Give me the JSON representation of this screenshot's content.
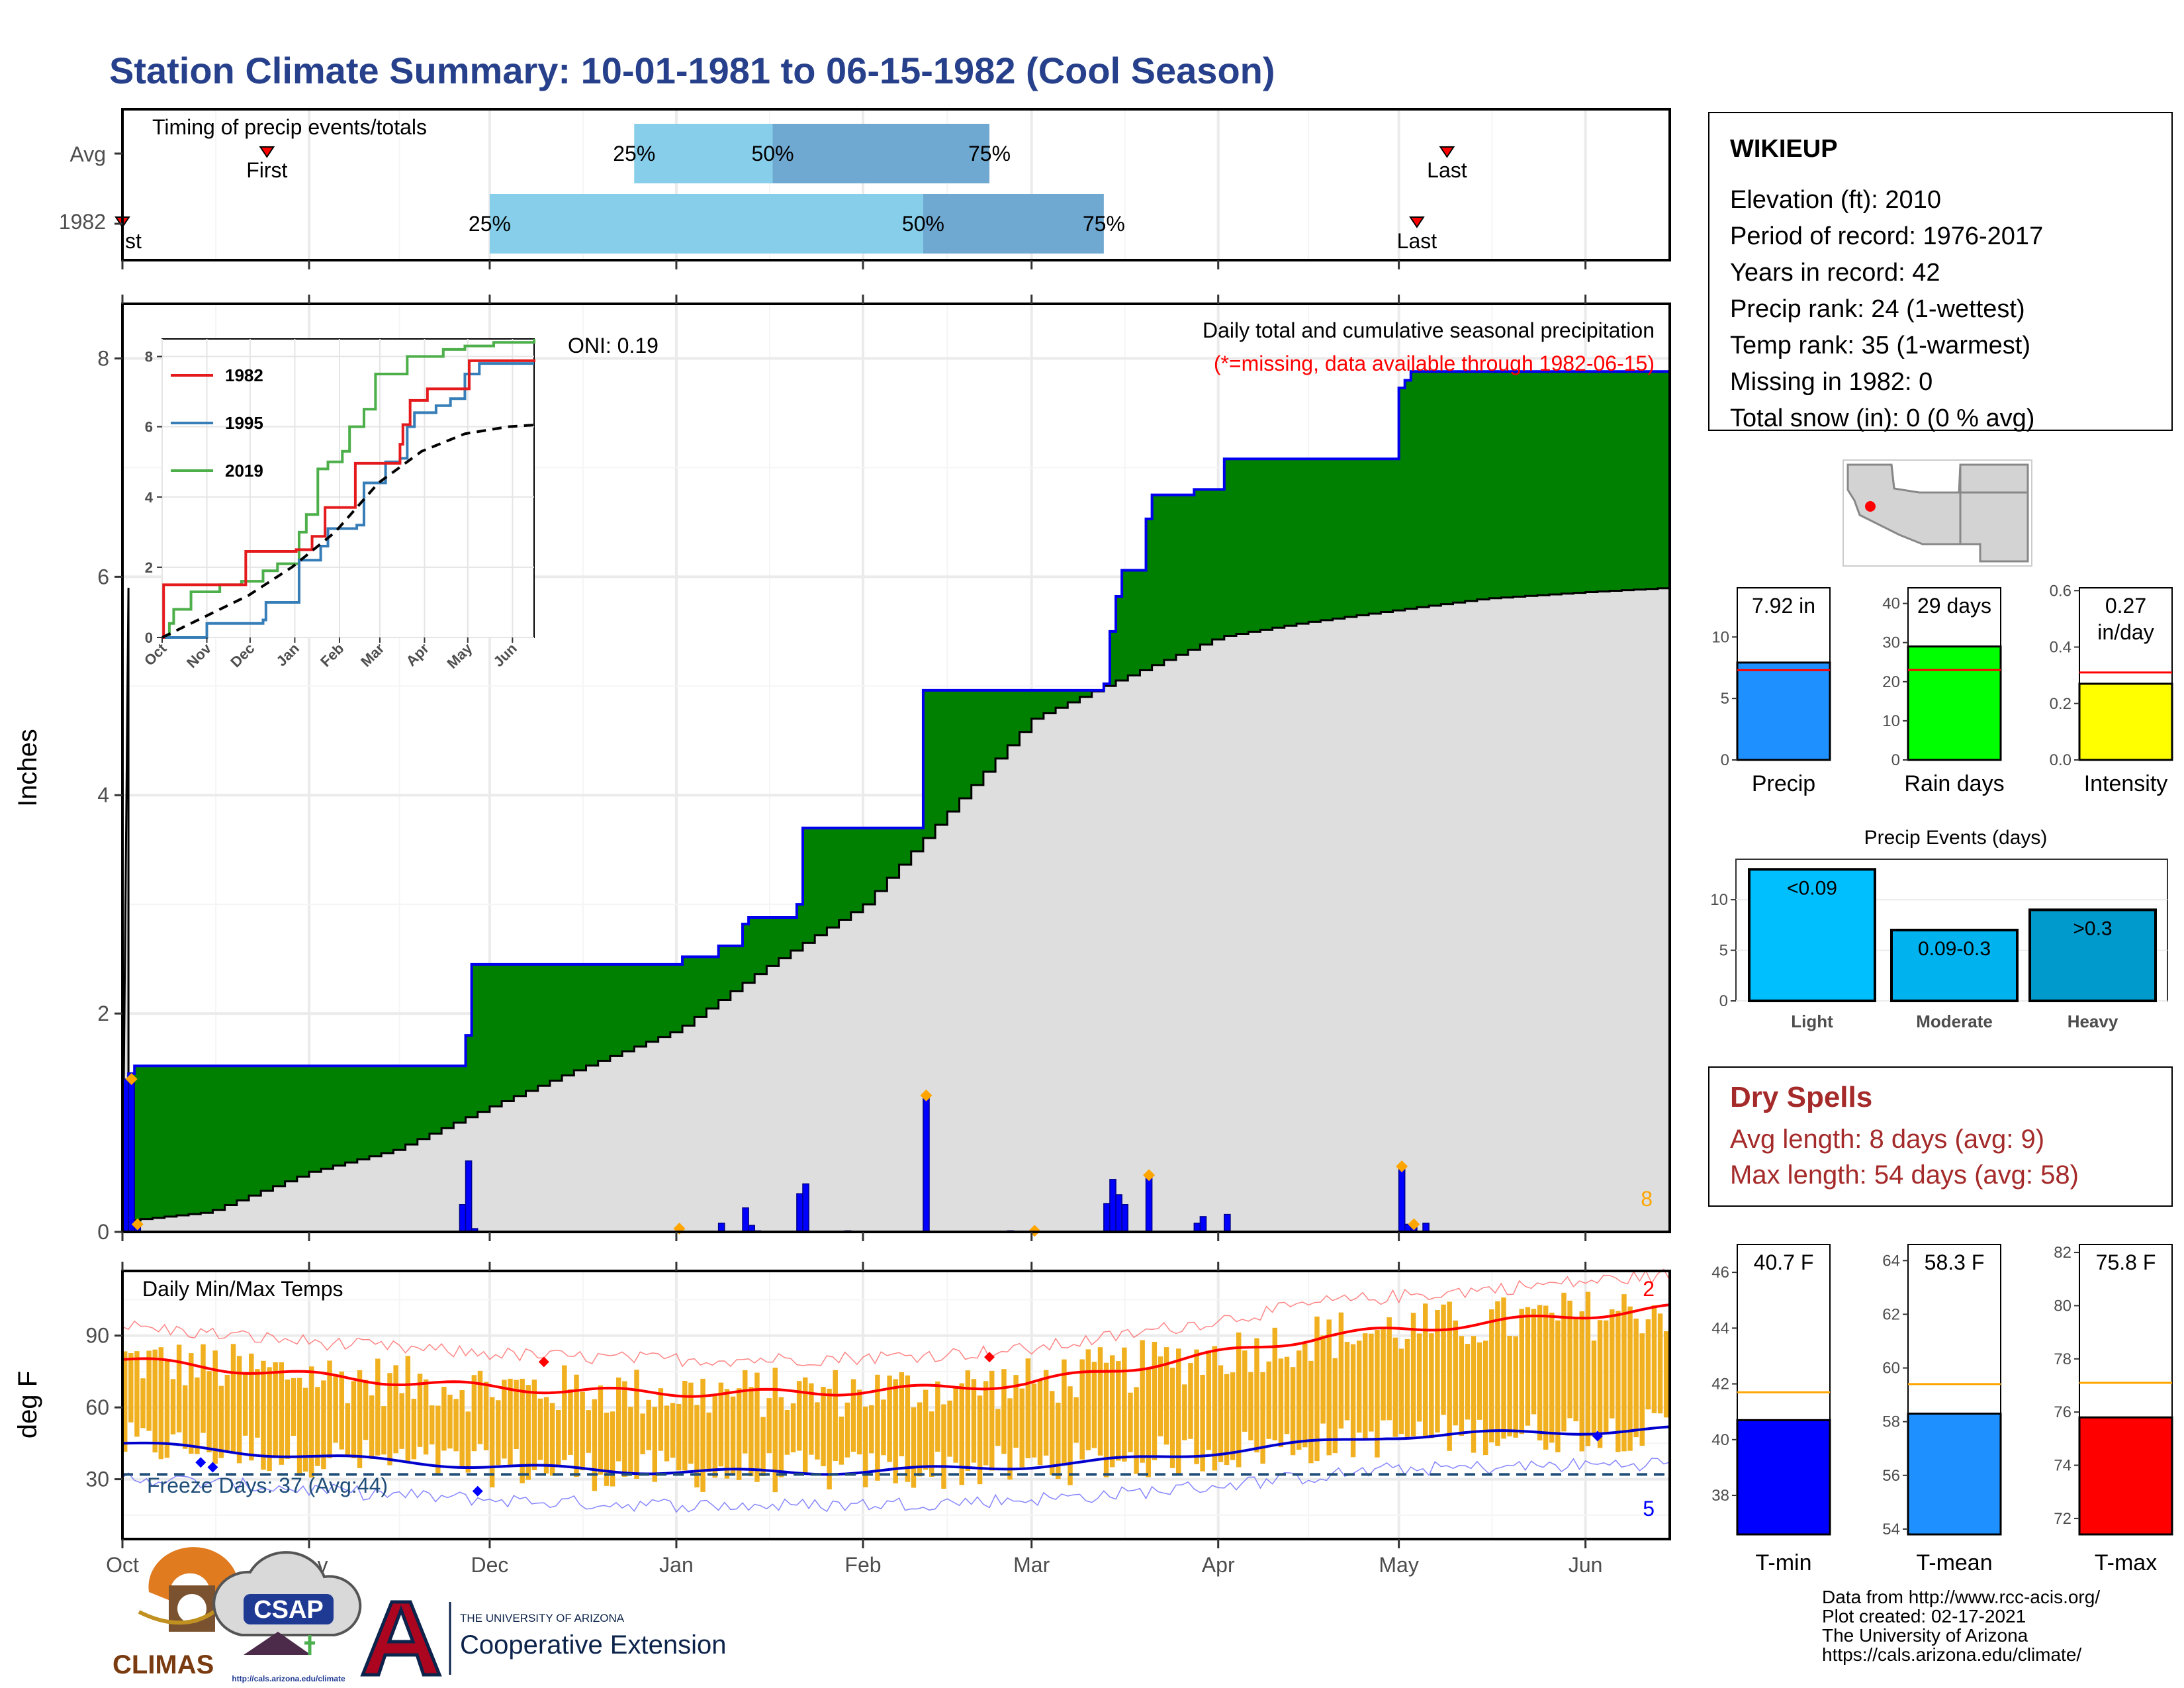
{
  "title": "Station Climate Summary: 10-01-1981 to 06-15-1982 (Cool Season)",
  "colors": {
    "title": "#27408b",
    "cumulative_fill": "#008000",
    "avg_fill": "#dedede",
    "precip_line": "#0000ee",
    "temp_bar": "#f0b020",
    "tmax_line": "#ff0000",
    "tmin_line": "#0000cd",
    "dry_spell_text": "#a52a2a"
  },
  "timing": {
    "label": "Timing of precip events/totals",
    "rows": [
      "Avg",
      "1982"
    ],
    "first_label": "First",
    "first_label_partial": "st",
    "last_label": "Last",
    "pct_labels": [
      "25%",
      "50%",
      "75%"
    ],
    "avg": {
      "first": "1981-10-25",
      "p25": "1981-12-25",
      "p50": "1982-01-17",
      "p75": "1982-02-22",
      "last": "1982-05-09"
    },
    "y1982": {
      "first": "1981-10-01",
      "p25": "1981-12-01",
      "p50": "1982-02-11",
      "p75": "1982-03-13",
      "last": "1982-05-04"
    }
  },
  "precip": {
    "ylabel": "Inches",
    "ylim": [
      0,
      8.5
    ],
    "yticks": [
      "0",
      "2",
      "4",
      "6",
      "8"
    ],
    "caption": "Daily total and cumulative seasonal precipitation",
    "missing_note": "(*=missing, data available through 1982-06-15)",
    "oni": "ONI: 0.19",
    "count_label": "8",
    "cumulative_1982": [
      [
        "1981-10-01",
        0
      ],
      [
        "1981-10-02",
        1.45
      ],
      [
        "1981-10-03",
        1.52
      ],
      [
        "1981-11-26",
        1.52
      ],
      [
        "1981-11-27",
        1.8
      ],
      [
        "1981-11-28",
        2.45
      ],
      [
        "1982-01-01",
        2.45
      ],
      [
        "1982-01-02",
        2.52
      ],
      [
        "1982-01-07",
        2.52
      ],
      [
        "1982-01-08",
        2.62
      ],
      [
        "1982-01-11",
        2.62
      ],
      [
        "1982-01-12",
        2.82
      ],
      [
        "1982-01-13",
        2.88
      ],
      [
        "1982-01-20",
        2.88
      ],
      [
        "1982-01-21",
        3.0
      ],
      [
        "1982-01-22",
        3.7
      ],
      [
        "1982-02-10",
        3.7
      ],
      [
        "1982-02-11",
        4.96
      ],
      [
        "1982-03-12",
        4.96
      ],
      [
        "1982-03-13",
        5.02
      ],
      [
        "1982-03-14",
        5.5
      ],
      [
        "1982-03-15",
        5.82
      ],
      [
        "1982-03-16",
        6.06
      ],
      [
        "1982-03-19",
        6.06
      ],
      [
        "1982-03-20",
        6.53
      ],
      [
        "1982-03-21",
        6.75
      ],
      [
        "1982-03-27",
        6.75
      ],
      [
        "1982-03-28",
        6.8
      ],
      [
        "1982-04-01",
        6.8
      ],
      [
        "1982-04-02",
        7.08
      ],
      [
        "1982-04-30",
        7.08
      ],
      [
        "1982-05-01",
        7.73
      ],
      [
        "1982-05-02",
        7.8
      ],
      [
        "1982-05-03",
        7.88
      ],
      [
        "1982-06-15",
        7.92
      ]
    ],
    "avg_curve": [
      [
        "1981-10-01",
        0.1
      ],
      [
        "1981-10-15",
        0.18
      ],
      [
        "1981-11-01",
        0.55
      ],
      [
        "1981-11-15",
        0.75
      ],
      [
        "1981-12-01",
        1.15
      ],
      [
        "1981-12-15",
        1.48
      ],
      [
        "1982-01-01",
        1.85
      ],
      [
        "1982-01-15",
        2.4
      ],
      [
        "1982-02-01",
        3.0
      ],
      [
        "1982-02-15",
        3.85
      ],
      [
        "1982-03-01",
        4.7
      ],
      [
        "1982-03-15",
        5.05
      ],
      [
        "1982-04-01",
        5.45
      ],
      [
        "1982-04-15",
        5.58
      ],
      [
        "1982-05-01",
        5.7
      ],
      [
        "1982-05-15",
        5.8
      ],
      [
        "1982-06-01",
        5.86
      ],
      [
        "1982-06-15",
        5.9
      ]
    ],
    "daily": [
      [
        "1981-10-01",
        1.4
      ],
      [
        "1981-10-02",
        1.4
      ],
      [
        "1981-10-03",
        0.07
      ],
      [
        "1981-11-26",
        0.25
      ],
      [
        "1981-11-27",
        0.65
      ],
      [
        "1981-11-28",
        0.03
      ],
      [
        "1982-01-01",
        0.04
      ],
      [
        "1982-01-08",
        0.08
      ],
      [
        "1982-01-12",
        0.22
      ],
      [
        "1982-01-13",
        0.06
      ],
      [
        "1982-01-14",
        0.01
      ],
      [
        "1982-01-21",
        0.35
      ],
      [
        "1982-01-22",
        0.44
      ],
      [
        "1982-01-29",
        0.01
      ],
      [
        "1982-02-11",
        1.25
      ],
      [
        "1982-02-25",
        0.01
      ],
      [
        "1982-03-13",
        0.26
      ],
      [
        "1982-03-14",
        0.48
      ],
      [
        "1982-03-15",
        0.34
      ],
      [
        "1982-03-16",
        0.25
      ],
      [
        "1982-03-20",
        0.5
      ],
      [
        "1982-03-28",
        0.08
      ],
      [
        "1982-03-29",
        0.14
      ],
      [
        "1982-04-02",
        0.16
      ],
      [
        "1982-05-01",
        0.6
      ],
      [
        "1982-05-02",
        0.07
      ],
      [
        "1982-05-03",
        0.04
      ],
      [
        "1982-05-05",
        0.08
      ]
    ],
    "diamonds": [
      [
        "1981-10-02",
        1.4
      ],
      [
        "1981-10-03",
        0.07
      ],
      [
        "1982-01-01",
        0.03
      ],
      [
        "1982-02-11",
        1.25
      ],
      [
        "1982-03-01",
        0.01
      ],
      [
        "1982-03-20",
        0.52
      ],
      [
        "1982-05-01",
        0.6
      ],
      [
        "1982-05-03",
        0.07
      ]
    ]
  },
  "inset": {
    "yticks": [
      "0",
      "2",
      "4",
      "6",
      "8"
    ],
    "xticks": [
      "Oct",
      "Nov",
      "Dec",
      "Jan",
      "Feb",
      "Mar",
      "Apr",
      "May",
      "Jun"
    ],
    "legend": [
      {
        "name": "1982",
        "color": "#e41a1c"
      },
      {
        "name": "1995",
        "color": "#377eb8"
      },
      {
        "name": "2019",
        "color": "#4daf4a"
      }
    ],
    "series_1982": [
      [
        0,
        0
      ],
      [
        1,
        1.5
      ],
      [
        56,
        1.5
      ],
      [
        58,
        2.45
      ],
      [
        92,
        2.45
      ],
      [
        93,
        2.5
      ],
      [
        103,
        2.5
      ],
      [
        104,
        2.88
      ],
      [
        112,
        2.88
      ],
      [
        113,
        3.7
      ],
      [
        133,
        3.7
      ],
      [
        134,
        4.96
      ],
      [
        163,
        4.96
      ],
      [
        165,
        5.5
      ],
      [
        167,
        6.06
      ],
      [
        171,
        6.06
      ],
      [
        172,
        6.75
      ],
      [
        183,
        6.75
      ],
      [
        184,
        7.08
      ],
      [
        212,
        7.08
      ],
      [
        213,
        7.88
      ],
      [
        258,
        7.92
      ]
    ],
    "series_1995": [
      [
        0,
        0
      ],
      [
        30,
        0
      ],
      [
        31,
        0.4
      ],
      [
        70,
        0.5
      ],
      [
        72,
        1.0
      ],
      [
        90,
        1.0
      ],
      [
        95,
        2.2
      ],
      [
        110,
        2.6
      ],
      [
        115,
        3.1
      ],
      [
        135,
        3.2
      ],
      [
        140,
        4.4
      ],
      [
        155,
        5.0
      ],
      [
        165,
        5.1
      ],
      [
        170,
        6.0
      ],
      [
        175,
        6.4
      ],
      [
        190,
        6.6
      ],
      [
        200,
        6.8
      ],
      [
        210,
        7.5
      ],
      [
        220,
        7.8
      ],
      [
        258,
        7.8
      ]
    ],
    "series_2019": [
      [
        0,
        0
      ],
      [
        5,
        0.4
      ],
      [
        8,
        0.8
      ],
      [
        15,
        0.8
      ],
      [
        20,
        1.3
      ],
      [
        40,
        1.5
      ],
      [
        55,
        1.6
      ],
      [
        70,
        1.9
      ],
      [
        80,
        2.1
      ],
      [
        95,
        3.0
      ],
      [
        100,
        3.5
      ],
      [
        105,
        3.5
      ],
      [
        108,
        4.8
      ],
      [
        115,
        5.0
      ],
      [
        125,
        5.3
      ],
      [
        130,
        6.0
      ],
      [
        140,
        6.5
      ],
      [
        148,
        7.5
      ],
      [
        165,
        7.5
      ],
      [
        170,
        8.0
      ],
      [
        185,
        8.0
      ],
      [
        195,
        8.2
      ],
      [
        210,
        8.3
      ],
      [
        230,
        8.4
      ],
      [
        258,
        8.5
      ]
    ],
    "avg": [
      [
        0,
        0
      ],
      [
        30,
        0.6
      ],
      [
        60,
        1.2
      ],
      [
        90,
        2.0
      ],
      [
        120,
        3.0
      ],
      [
        150,
        4.4
      ],
      [
        180,
        5.3
      ],
      [
        210,
        5.8
      ],
      [
        240,
        6.0
      ],
      [
        258,
        6.05
      ]
    ]
  },
  "temps": {
    "label": "Daily Min/Max Temps",
    "ylabel": "deg F",
    "yticks": [
      "30",
      "60",
      "90"
    ],
    "freeze_label": "Freeze Days: 37 (Avg:44)",
    "max_count": "2",
    "min_count": "5",
    "freeze_line": 32,
    "red_diamonds": [
      [
        "1981-12-10",
        79
      ],
      [
        "1982-02-22",
        81
      ]
    ],
    "blue_diamonds": [
      [
        "1981-10-14",
        37
      ],
      [
        "1981-10-16",
        35
      ],
      [
        "1981-11-29",
        25
      ],
      [
        "1982-06-03",
        48
      ]
    ]
  },
  "xaxis": {
    "domain": [
      "1981-10-01",
      "1982-06-15"
    ],
    "ticks": [
      {
        "label": "Oct",
        "date": "1981-10-01"
      },
      {
        "label": "Nov",
        "date": "1981-11-01"
      },
      {
        "label": "Dec",
        "date": "1981-12-01"
      },
      {
        "label": "Jan",
        "date": "1982-01-01"
      },
      {
        "label": "Feb",
        "date": "1982-02-01"
      },
      {
        "label": "Mar",
        "date": "1982-03-01"
      },
      {
        "label": "Apr",
        "date": "1982-04-01"
      },
      {
        "label": "May",
        "date": "1982-05-01"
      },
      {
        "label": "Jun",
        "date": "1982-06-01"
      }
    ]
  },
  "station": {
    "name": "WIKIEUP",
    "lines": [
      "Elevation (ft): 2010",
      "Period of record: 1976-2017",
      "Years in record: 42",
      "Precip rank: 24 (1-wettest)",
      "Temp rank: 35 (1-warmest)",
      "Missing in 1982: 0",
      "Total snow (in): 0 (0 % avg)"
    ]
  },
  "summary_precip": [
    {
      "label": "Precip",
      "value": 7.92,
      "avg": 7.3,
      "value_text": "7.92 in",
      "ylim": [
        0,
        14
      ],
      "ticks": [
        "0",
        "5",
        "10"
      ],
      "tickvals": [
        0,
        5,
        10
      ],
      "color": "#1e90ff"
    },
    {
      "label": "Rain days",
      "value": 29,
      "avg": 23,
      "value_text": "29 days",
      "ylim": [
        0,
        44
      ],
      "ticks": [
        "0",
        "10",
        "20",
        "30",
        "40"
      ],
      "tickvals": [
        0,
        10,
        20,
        30,
        40
      ],
      "color": "#00ff00"
    },
    {
      "label": "Intensity",
      "value": 0.27,
      "avg": 0.31,
      "value_text": "0.27 in/day",
      "value_lines": [
        "0.27",
        "in/day"
      ],
      "ylim": [
        0,
        0.61
      ],
      "ticks": [
        "0.0",
        "0.2",
        "0.4",
        "0.6"
      ],
      "tickvals": [
        0,
        0.2,
        0.4,
        0.6
      ],
      "color": "#ffff00"
    }
  ],
  "precip_events": {
    "title": "Precip Events (days)",
    "ylim": [
      0,
      14
    ],
    "ticks": [
      "0",
      "5",
      "10"
    ],
    "tickvals": [
      0,
      5,
      10
    ],
    "bars": [
      {
        "category": "Light",
        "value": 13,
        "label": "<0.09",
        "color": "#00bfff"
      },
      {
        "category": "Moderate",
        "value": 7,
        "label": "0.09-0.3",
        "color": "#00b2ee"
      },
      {
        "category": "Heavy",
        "value": 9,
        "label": ">0.3",
        "color": "#009acd"
      }
    ]
  },
  "dry_spells": {
    "title": "Dry Spells",
    "avg_line": "Avg length: 8 days (avg: 9)",
    "max_line": "Max length: 54 days (avg: 58)"
  },
  "summary_temp": [
    {
      "label": "T-min",
      "value": 40.7,
      "avg": 41.7,
      "value_text": "40.7 F",
      "ylim": [
        36.6,
        47
      ],
      "ticks": [
        "38",
        "40",
        "42",
        "44",
        "46"
      ],
      "tickvals": [
        38,
        40,
        42,
        44,
        46
      ],
      "color": "#0000ff"
    },
    {
      "label": "T-mean",
      "value": 58.3,
      "avg": 59.4,
      "value_text": "58.3 F",
      "ylim": [
        53.8,
        64.6
      ],
      "ticks": [
        "54",
        "56",
        "58",
        "60",
        "62",
        "64"
      ],
      "tickvals": [
        54,
        56,
        58,
        60,
        62,
        64
      ],
      "color": "#1e90ff"
    },
    {
      "label": "T-max",
      "value": 75.8,
      "avg": 77.1,
      "value_text": "75.8 F",
      "ylim": [
        71.4,
        82.3
      ],
      "ticks": [
        "72",
        "74",
        "76",
        "78",
        "80",
        "82"
      ],
      "tickvals": [
        72,
        74,
        76,
        78,
        80,
        82
      ],
      "color": "#ff0000"
    }
  ],
  "footer": {
    "credits": [
      "Data from http://www.rcc-acis.org/",
      "Plot created: 02-17-2021",
      "The University of Arizona",
      "https://cals.arizona.edu/climate/"
    ],
    "climas": "CLIMAS",
    "csap": "CSAP",
    "csap_url": "http://cals.arizona.edu/climate",
    "ua_small": "THE UNIVERSITY OF ARIZONA",
    "ua_ext": "Cooperative Extension"
  }
}
